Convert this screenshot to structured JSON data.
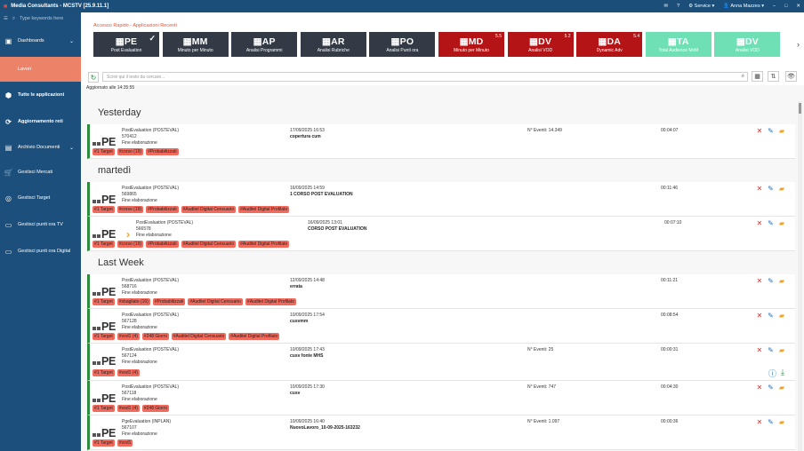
{
  "titlebar": {
    "title": "Media Consultants - MCSTV [25.9.11.1]",
    "service": "Service",
    "user": "Anna Mazzes"
  },
  "sidebar": {
    "search_placeholder": "Type keywords here",
    "items": [
      {
        "label": "Dashboards",
        "icon": "dashboard-icon",
        "has_chevron": true
      },
      {
        "label": "Lavori",
        "icon": "",
        "has_chevron": false
      },
      {
        "label": "Tutte le applicazioni",
        "icon": "cube-icon",
        "has_chevron": false
      },
      {
        "label": "Aggiornamento reti",
        "icon": "sync-icon",
        "has_chevron": false
      },
      {
        "label": "Archivio Documenti",
        "icon": "archive-icon",
        "has_chevron": true
      },
      {
        "label": "Gestisci Mercati",
        "icon": "cart-icon",
        "has_chevron": false
      },
      {
        "label": "Gestisci Target",
        "icon": "target-icon",
        "has_chevron": false
      },
      {
        "label": "Gestisci punti ora TV",
        "icon": "tv-icon",
        "has_chevron": false
      },
      {
        "label": "Gestisci punti ora Digital",
        "icon": "digital-icon",
        "has_chevron": false
      }
    ]
  },
  "quick_access_label": "Accesso Rapido - Applicazioni Recenti",
  "tiles": [
    {
      "code": "PE",
      "label": "Post Evaluation",
      "color": "dark",
      "version": "",
      "checked": true
    },
    {
      "code": "MM",
      "label": "Minuto per Minuto",
      "color": "dark",
      "version": "",
      "checked": false
    },
    {
      "code": "AP",
      "label": "Analisi Programmi",
      "color": "dark",
      "version": "",
      "checked": false
    },
    {
      "code": "AR",
      "label": "Analisi Rubriche",
      "color": "dark",
      "version": "",
      "checked": false
    },
    {
      "code": "PO",
      "label": "Analisi Punti ora",
      "color": "dark",
      "version": "",
      "checked": false
    },
    {
      "code": "MD",
      "label": "Minuto per Minuto",
      "color": "red",
      "version": "5.5",
      "checked": false
    },
    {
      "code": "DV",
      "label": "Analisi VOD",
      "color": "red",
      "version": "5.2",
      "checked": false
    },
    {
      "code": "DA",
      "label": "Dynamic Adv",
      "color": "red",
      "version": "5.4",
      "checked": false
    },
    {
      "code": "TA",
      "label": "Total Audience MxM",
      "color": "green",
      "version": "",
      "checked": false
    },
    {
      "code": "DV",
      "label": "Analisi VOD",
      "color": "green",
      "version": "",
      "checked": false
    }
  ],
  "search": {
    "placeholder": "Scrivi qui il testo da cercare..."
  },
  "updated_label": "Aggiornato alle 14:35:55",
  "sections": [
    {
      "title": "Yesterday",
      "cards": [
        {
          "type": "PostEvaluation (POSTEVAL)",
          "id": "570412",
          "status": "Fine elaborazione",
          "date": "17/09/2025 16:53",
          "name": "copertura cum",
          "events": "N° Eventi: 14.349",
          "duration": "00:04:07",
          "tags": [
            "#1 Target",
            "#corso (19)",
            "#Probabilizzati"
          ],
          "arrow": false,
          "extra": false
        }
      ]
    },
    {
      "title": "martedì",
      "cards": [
        {
          "type": "PostEvaluation (POSTEVAL)",
          "id": "569865",
          "status": "Fine elaborazione",
          "date": "16/09/2025 14:59",
          "name": "1 CORSO POST EVALUATION",
          "events": "",
          "duration": "00:11:46",
          "tags": [
            "#1 Target",
            "#corso (19)",
            "#Probabilizzati",
            "#Auditel Digital Censuario",
            "#Auditel Digital Profilato"
          ],
          "arrow": false,
          "extra": false
        },
        {
          "type": "PostEvaluation (POSTEVAL)",
          "id": "566578",
          "status": "Fine elaborazione",
          "date": "16/09/2025 13:01",
          "name": "CORSO POST EVALUATION",
          "events": "",
          "duration": "00:07:10",
          "tags": [
            "#1 Target",
            "#corso (19)",
            "#Probabilizzati",
            "#Auditel Digital Censuario",
            "#Auditel Digital Profilato"
          ],
          "arrow": true,
          "extra": false
        }
      ]
    },
    {
      "title": "Last Week",
      "cards": [
        {
          "type": "PostEvaluation (POSTEVAL)",
          "id": "568716",
          "status": "Fine elaborazione",
          "date": "12/09/2025 14:48",
          "name": "errata",
          "events": "",
          "duration": "00:11:21",
          "tags": [
            "#1 Target",
            "#sbagliato (16)",
            "#Probabilizzati",
            "#Auditel Digital Censuario",
            "#Auditel Digital Profilato"
          ],
          "arrow": false,
          "extra": false
        },
        {
          "type": "PostEvaluation (POSTEVAL)",
          "id": "567128",
          "status": "Fine elaborazione",
          "date": "10/09/2025 17:54",
          "name": "cusvmm",
          "events": "",
          "duration": "00:08:54",
          "tags": [
            "#1 Target",
            "#vod1 (4)",
            "#248 Giorni",
            "#Auditel Digital Censuario",
            "#Auditel Digital Profilato"
          ],
          "arrow": false,
          "extra": false
        },
        {
          "type": "PostEvaluation (POSTEVAL)",
          "id": "567124",
          "status": "Fine elaborazione",
          "date": "10/09/2025 17:43",
          "name": "cusv fonte MHS",
          "events": "N° Eventi: 25",
          "duration": "00:00:31",
          "tags": [
            "#1 Target",
            "#vod1 (4)"
          ],
          "arrow": false,
          "extra": true
        },
        {
          "type": "PostEvaluation (POSTEVAL)",
          "id": "567118",
          "status": "Fine elaborazione",
          "date": "10/09/2025 17:30",
          "name": "cusv",
          "events": "N° Eventi: 747",
          "duration": "00:04:30",
          "tags": [
            "#1 Target",
            "#vod1 (4)",
            "#248 Giorni"
          ],
          "arrow": false,
          "extra": false
        },
        {
          "type": "PgeEvaluation (INPLAN)",
          "id": "567107",
          "status": "Fine elaborazione",
          "date": "10/09/2025 16:40",
          "name": "NuovoLavoro_10-09-2025-163232",
          "events": "N° Eventi: 1.097",
          "duration": "00:00:36",
          "tags": [
            "#1 Target",
            "#vod1"
          ],
          "arrow": false,
          "extra": false
        }
      ]
    }
  ],
  "colors": {
    "sidebar": "#1c4f7b",
    "active": "#ec8268",
    "tile_dark": "#333a45",
    "tile_red": "#b51416",
    "tile_green": "#6fdfb5",
    "tag": "#f26a5b",
    "card_border": "#2c8c3b"
  }
}
